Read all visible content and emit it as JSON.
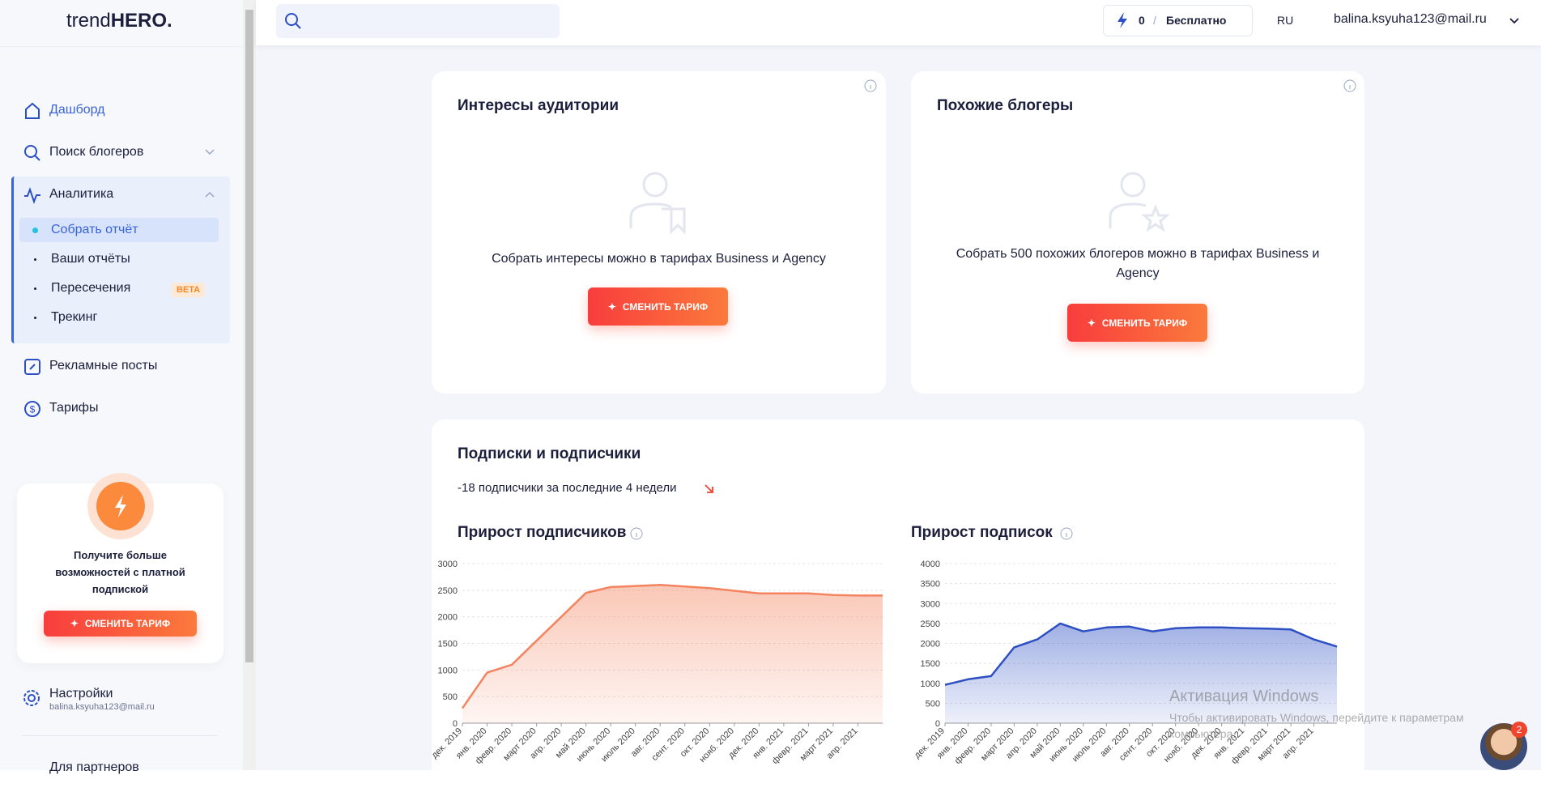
{
  "header": {
    "logo_light": "trend",
    "logo_bold": "HERO.",
    "credits": "0",
    "separator": "/",
    "plan": "Бесплатно",
    "language": "RU",
    "email": "balina.ksyuha123@mail.ru"
  },
  "sidebar": {
    "nav": [
      "Дашборд",
      "Поиск блогеров",
      "Аналитика"
    ],
    "subnav": [
      "Собрать отчёт",
      "Ваши отчёты",
      "Пересечения",
      "Трекинг"
    ],
    "beta": "BETA",
    "nav_bottom": [
      "Рекламные посты",
      "Тарифы"
    ],
    "promo": {
      "text": "Получите больше возможностей с платной подпиской",
      "button": "СМЕНИТЬ ТАРИФ"
    },
    "settings": {
      "title": "Настройки",
      "email": "balina.ksyuha123@mail.ru"
    },
    "partners": "Для партнеров"
  },
  "cards": [
    {
      "title": "Интересы аудитории",
      "text": "Собрать интересы можно в тарифах Business и Agency",
      "button": "СМЕНИТЬ ТАРИФ"
    },
    {
      "title": "Похожие блогеры",
      "text": "Собрать 500 похожих блогеров можно в тарифах Business и Agency",
      "button": "СМЕНИТЬ ТАРИФ"
    }
  ],
  "subscriptions": {
    "title": "Подписки и подписчики",
    "summary": "-18 подписчики за последние 4 недели"
  },
  "chart_data": [
    {
      "type": "area",
      "title": "Прирост подписчиков",
      "color": "#f4845f",
      "categories": [
        "дек. 2019",
        "янв. 2020",
        "февр. 2020",
        "март 2020",
        "апр. 2020",
        "май 2020",
        "июнь 2020",
        "июль 2020",
        "авг. 2020",
        "сент. 2020",
        "окт. 2020",
        "нояб. 2020",
        "дек. 2020",
        "янв. 2021",
        "февр. 2021",
        "март 2021",
        "апр. 2021",
        null
      ],
      "values": [
        280,
        950,
        1100,
        1550,
        2000,
        2450,
        2560,
        2580,
        2600,
        2570,
        2540,
        2490,
        2440,
        2440,
        2440,
        2410,
        2400,
        2400
      ],
      "ylim": [
        0,
        3000
      ],
      "yticks": [
        0,
        500,
        1000,
        1500,
        2000,
        2500,
        3000
      ],
      "grid": true
    },
    {
      "type": "area",
      "title": "Прирост подписок",
      "color": "#2d4fc4",
      "categories": [
        "дек. 2019",
        "янв. 2020",
        "февр. 2020",
        "март 2020",
        "апр. 2020",
        "май 2020",
        "июнь 2020",
        "июль 2020",
        "авг. 2020",
        "сент. 2020",
        "окт. 2020",
        "нояб. 2020",
        "дек. 2020",
        "янв. 2021",
        "февр. 2021",
        "март 2021",
        "апр. 2021",
        null
      ],
      "values": [
        960,
        1100,
        1180,
        1900,
        2100,
        2500,
        2300,
        2400,
        2420,
        2300,
        2380,
        2400,
        2400,
        2380,
        2370,
        2350,
        2100,
        1920
      ],
      "ylim": [
        0,
        4000
      ],
      "yticks": [
        0,
        500,
        1000,
        1500,
        2000,
        2500,
        3000,
        3500,
        4000
      ],
      "grid": true
    }
  ],
  "watermark": {
    "title": "Активация Windows",
    "text": "Чтобы активировать Windows, перейдите к параметрам компьютера."
  },
  "chat_badge": "2"
}
